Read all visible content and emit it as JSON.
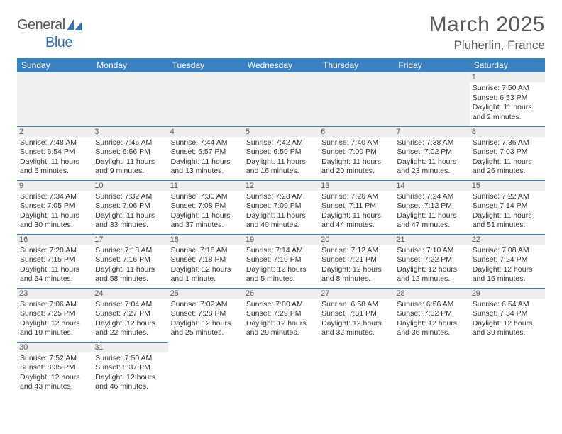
{
  "logo": {
    "text1": "General",
    "text2": "Blue"
  },
  "title": "March 2025",
  "location": "Pluherlin, France",
  "colors": {
    "header_bg": "#3a81c2",
    "header_fg": "#ffffff",
    "border": "#3a81c2",
    "daynum_bg": "#eeeeee",
    "logo_gray": "#57585a",
    "logo_blue": "#2e74b5"
  },
  "daysOfWeek": [
    "Sunday",
    "Monday",
    "Tuesday",
    "Wednesday",
    "Thursday",
    "Friday",
    "Saturday"
  ],
  "weeks": [
    [
      null,
      null,
      null,
      null,
      null,
      null,
      {
        "n": "1",
        "sunrise": "7:50 AM",
        "sunset": "6:53 PM",
        "daylight": "11 hours and 2 minutes."
      }
    ],
    [
      {
        "n": "2",
        "sunrise": "7:48 AM",
        "sunset": "6:54 PM",
        "daylight": "11 hours and 6 minutes."
      },
      {
        "n": "3",
        "sunrise": "7:46 AM",
        "sunset": "6:56 PM",
        "daylight": "11 hours and 9 minutes."
      },
      {
        "n": "4",
        "sunrise": "7:44 AM",
        "sunset": "6:57 PM",
        "daylight": "11 hours and 13 minutes."
      },
      {
        "n": "5",
        "sunrise": "7:42 AM",
        "sunset": "6:59 PM",
        "daylight": "11 hours and 16 minutes."
      },
      {
        "n": "6",
        "sunrise": "7:40 AM",
        "sunset": "7:00 PM",
        "daylight": "11 hours and 20 minutes."
      },
      {
        "n": "7",
        "sunrise": "7:38 AM",
        "sunset": "7:02 PM",
        "daylight": "11 hours and 23 minutes."
      },
      {
        "n": "8",
        "sunrise": "7:36 AM",
        "sunset": "7:03 PM",
        "daylight": "11 hours and 26 minutes."
      }
    ],
    [
      {
        "n": "9",
        "sunrise": "7:34 AM",
        "sunset": "7:05 PM",
        "daylight": "11 hours and 30 minutes."
      },
      {
        "n": "10",
        "sunrise": "7:32 AM",
        "sunset": "7:06 PM",
        "daylight": "11 hours and 33 minutes."
      },
      {
        "n": "11",
        "sunrise": "7:30 AM",
        "sunset": "7:08 PM",
        "daylight": "11 hours and 37 minutes."
      },
      {
        "n": "12",
        "sunrise": "7:28 AM",
        "sunset": "7:09 PM",
        "daylight": "11 hours and 40 minutes."
      },
      {
        "n": "13",
        "sunrise": "7:26 AM",
        "sunset": "7:11 PM",
        "daylight": "11 hours and 44 minutes."
      },
      {
        "n": "14",
        "sunrise": "7:24 AM",
        "sunset": "7:12 PM",
        "daylight": "11 hours and 47 minutes."
      },
      {
        "n": "15",
        "sunrise": "7:22 AM",
        "sunset": "7:14 PM",
        "daylight": "11 hours and 51 minutes."
      }
    ],
    [
      {
        "n": "16",
        "sunrise": "7:20 AM",
        "sunset": "7:15 PM",
        "daylight": "11 hours and 54 minutes."
      },
      {
        "n": "17",
        "sunrise": "7:18 AM",
        "sunset": "7:16 PM",
        "daylight": "11 hours and 58 minutes."
      },
      {
        "n": "18",
        "sunrise": "7:16 AM",
        "sunset": "7:18 PM",
        "daylight": "12 hours and 1 minute."
      },
      {
        "n": "19",
        "sunrise": "7:14 AM",
        "sunset": "7:19 PM",
        "daylight": "12 hours and 5 minutes."
      },
      {
        "n": "20",
        "sunrise": "7:12 AM",
        "sunset": "7:21 PM",
        "daylight": "12 hours and 8 minutes."
      },
      {
        "n": "21",
        "sunrise": "7:10 AM",
        "sunset": "7:22 PM",
        "daylight": "12 hours and 12 minutes."
      },
      {
        "n": "22",
        "sunrise": "7:08 AM",
        "sunset": "7:24 PM",
        "daylight": "12 hours and 15 minutes."
      }
    ],
    [
      {
        "n": "23",
        "sunrise": "7:06 AM",
        "sunset": "7:25 PM",
        "daylight": "12 hours and 19 minutes."
      },
      {
        "n": "24",
        "sunrise": "7:04 AM",
        "sunset": "7:27 PM",
        "daylight": "12 hours and 22 minutes."
      },
      {
        "n": "25",
        "sunrise": "7:02 AM",
        "sunset": "7:28 PM",
        "daylight": "12 hours and 25 minutes."
      },
      {
        "n": "26",
        "sunrise": "7:00 AM",
        "sunset": "7:29 PM",
        "daylight": "12 hours and 29 minutes."
      },
      {
        "n": "27",
        "sunrise": "6:58 AM",
        "sunset": "7:31 PM",
        "daylight": "12 hours and 32 minutes."
      },
      {
        "n": "28",
        "sunrise": "6:56 AM",
        "sunset": "7:32 PM",
        "daylight": "12 hours and 36 minutes."
      },
      {
        "n": "29",
        "sunrise": "6:54 AM",
        "sunset": "7:34 PM",
        "daylight": "12 hours and 39 minutes."
      }
    ],
    [
      {
        "n": "30",
        "sunrise": "7:52 AM",
        "sunset": "8:35 PM",
        "daylight": "12 hours and 43 minutes."
      },
      {
        "n": "31",
        "sunrise": "7:50 AM",
        "sunset": "8:37 PM",
        "daylight": "12 hours and 46 minutes."
      },
      null,
      null,
      null,
      null,
      null
    ]
  ],
  "labels": {
    "sunrise": "Sunrise:",
    "sunset": "Sunset:",
    "daylight": "Daylight:"
  }
}
